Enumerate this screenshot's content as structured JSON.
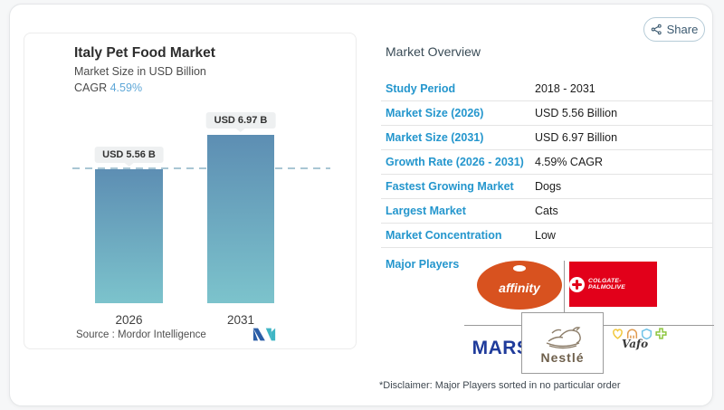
{
  "share": {
    "label": "Share"
  },
  "chart": {
    "title": "Italy Pet Food Market",
    "subtitle": "Market Size in USD Billion",
    "cagr_label": "CAGR",
    "cagr_value": "4.59%",
    "source": "Source :  Mordor Intelligence"
  },
  "chart_data": {
    "type": "bar",
    "categories": [
      "2026",
      "2031"
    ],
    "values": [
      5.56,
      6.97
    ],
    "bar_labels": [
      "USD 5.56 B",
      "USD 6.97 B"
    ],
    "title": "Italy Pet Food Market",
    "ylabel": "Market Size in USD Billion",
    "ylim": [
      0,
      6.97
    ],
    "threshold_line_at": 5.56,
    "grid": false,
    "legend": "none",
    "bar_gradient": [
      "#5d8eb3",
      "#7cc3cc"
    ]
  },
  "overview": {
    "title": "Market Overview",
    "rows": [
      {
        "label": "Study Period",
        "value": "2018 - 2031"
      },
      {
        "label": "Market Size (2026)",
        "value": "USD 5.56 Billion"
      },
      {
        "label": "Market Size (2031)",
        "value": "USD 6.97 Billion"
      },
      {
        "label": "Growth Rate (2026 - 2031)",
        "value": "4.59% CAGR"
      },
      {
        "label": "Fastest Growing Market",
        "value": "Dogs"
      },
      {
        "label": "Largest Market",
        "value": "Cats"
      },
      {
        "label": "Market Concentration",
        "value": "Low"
      }
    ],
    "major_players": {
      "label": "Major Players",
      "players": [
        "affinity",
        "COLGATE-PALMOLIVE",
        "MARS",
        "Nestlé",
        "Vafo"
      ],
      "disclaimer": "*Disclaimer: Major Players sorted in no particular order"
    }
  },
  "colors": {
    "accent_blue": "#2496cd",
    "cagr_blue": "#5fa8d8",
    "bar_top": "#5d8eb3",
    "bar_bottom": "#7cc3cc",
    "affinity_orange": "#d8521f",
    "colgate_red": "#e2001a",
    "mars_blue": "#1f3b9b",
    "nestle_brown": "#6e5f4b"
  }
}
